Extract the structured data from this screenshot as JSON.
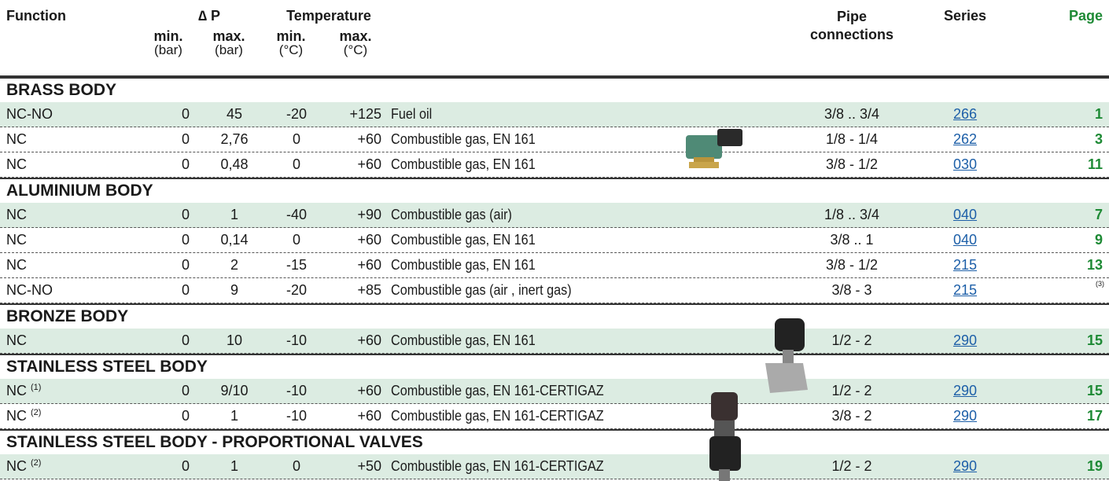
{
  "header": {
    "function": "Function",
    "dp": "∆ P",
    "temperature": "Temperature",
    "pipe": "Pipe connections",
    "series": "Series",
    "page": "Page",
    "dp_min": "min.",
    "dp_min_unit": "(bar)",
    "dp_max": "max.",
    "dp_max_unit": "(bar)",
    "t_min": "min.",
    "t_min_unit": "(°C)",
    "t_max": "max.",
    "t_max_unit": "(°C)"
  },
  "sections": [
    {
      "title": "BRASS BODY",
      "rows": [
        {
          "function": "NC-NO",
          "dp_min": "0",
          "dp_max": "45",
          "t_min": "-20",
          "t_max": "+125",
          "media": "Fuel oil",
          "pipe": "3/8 .. 3/4",
          "series": "266",
          "page": "1"
        },
        {
          "function": "NC",
          "dp_min": "0",
          "dp_max": "2,76",
          "t_min": "0",
          "t_max": "+60",
          "media": "Combustible gas, EN 161",
          "pipe": "1/8 - 1/4",
          "series": "262",
          "page": "3"
        },
        {
          "function": "NC",
          "dp_min": "0",
          "dp_max": "0,48",
          "t_min": "0",
          "t_max": "+60",
          "media": "Combustible gas, EN 161",
          "pipe": "3/8 - 1/2",
          "series": "030",
          "page": "11"
        }
      ]
    },
    {
      "title": "ALUMINIUM BODY",
      "rows": [
        {
          "function": "NC",
          "dp_min": "0",
          "dp_max": "1",
          "t_min": "-40",
          "t_max": "+90",
          "media": "Combustible gas (air)",
          "pipe": "1/8 .. 3/4",
          "series": "040",
          "page": "7"
        },
        {
          "function": "NC",
          "dp_min": "0",
          "dp_max": "0,14",
          "t_min": "0",
          "t_max": "+60",
          "media": "Combustible gas, EN 161",
          "pipe": "3/8 .. 1",
          "series": "040",
          "page": "9"
        },
        {
          "function": "NC",
          "dp_min": "0",
          "dp_max": "2",
          "t_min": "-15",
          "t_max": "+60",
          "media": "Combustible gas, EN 161",
          "pipe": "3/8 - 1/2",
          "series": "215",
          "page": "13"
        },
        {
          "function": "NC-NO",
          "dp_min": "0",
          "dp_max": "9",
          "t_min": "-20",
          "t_max": "+85",
          "media": "Combustible gas (air , inert gas)",
          "pipe": "3/8 - 3",
          "series": "215",
          "page_note": "(3)"
        }
      ]
    },
    {
      "title": "BRONZE BODY",
      "rows": [
        {
          "function": "NC",
          "dp_min": "0",
          "dp_max": "10",
          "t_min": "-10",
          "t_max": "+60",
          "media": "Combustible gas, EN 161",
          "pipe": "1/2 - 2",
          "series": "290",
          "page": "15"
        }
      ]
    },
    {
      "title": "STAINLESS STEEL BODY",
      "rows": [
        {
          "function": "NC",
          "note": "(1)",
          "dp_min": "0",
          "dp_max": "9/10",
          "t_min": "-10",
          "t_max": "+60",
          "media": "Combustible gas, EN 161-CERTIGAZ",
          "pipe": "1/2 - 2",
          "series": "290",
          "page": "15"
        },
        {
          "function": "NC",
          "note": "(2)",
          "dp_min": "0",
          "dp_max": "1",
          "t_min": "-10",
          "t_max": "+60",
          "media": "Combustible gas, EN 161-CERTIGAZ",
          "pipe": "3/8 - 2",
          "series": "290",
          "page": "17"
        }
      ]
    },
    {
      "title": "STAINLESS STEEL BODY - PROPORTIONAL VALVES",
      "rows": [
        {
          "function": "NC",
          "note": "(2)",
          "dp_min": "0",
          "dp_max": "1",
          "t_min": "0",
          "t_max": "+50",
          "media": "Combustible gas, EN 161-CERTIGAZ",
          "pipe": "1/2 - 2",
          "series": "290",
          "page": "19"
        }
      ]
    }
  ]
}
